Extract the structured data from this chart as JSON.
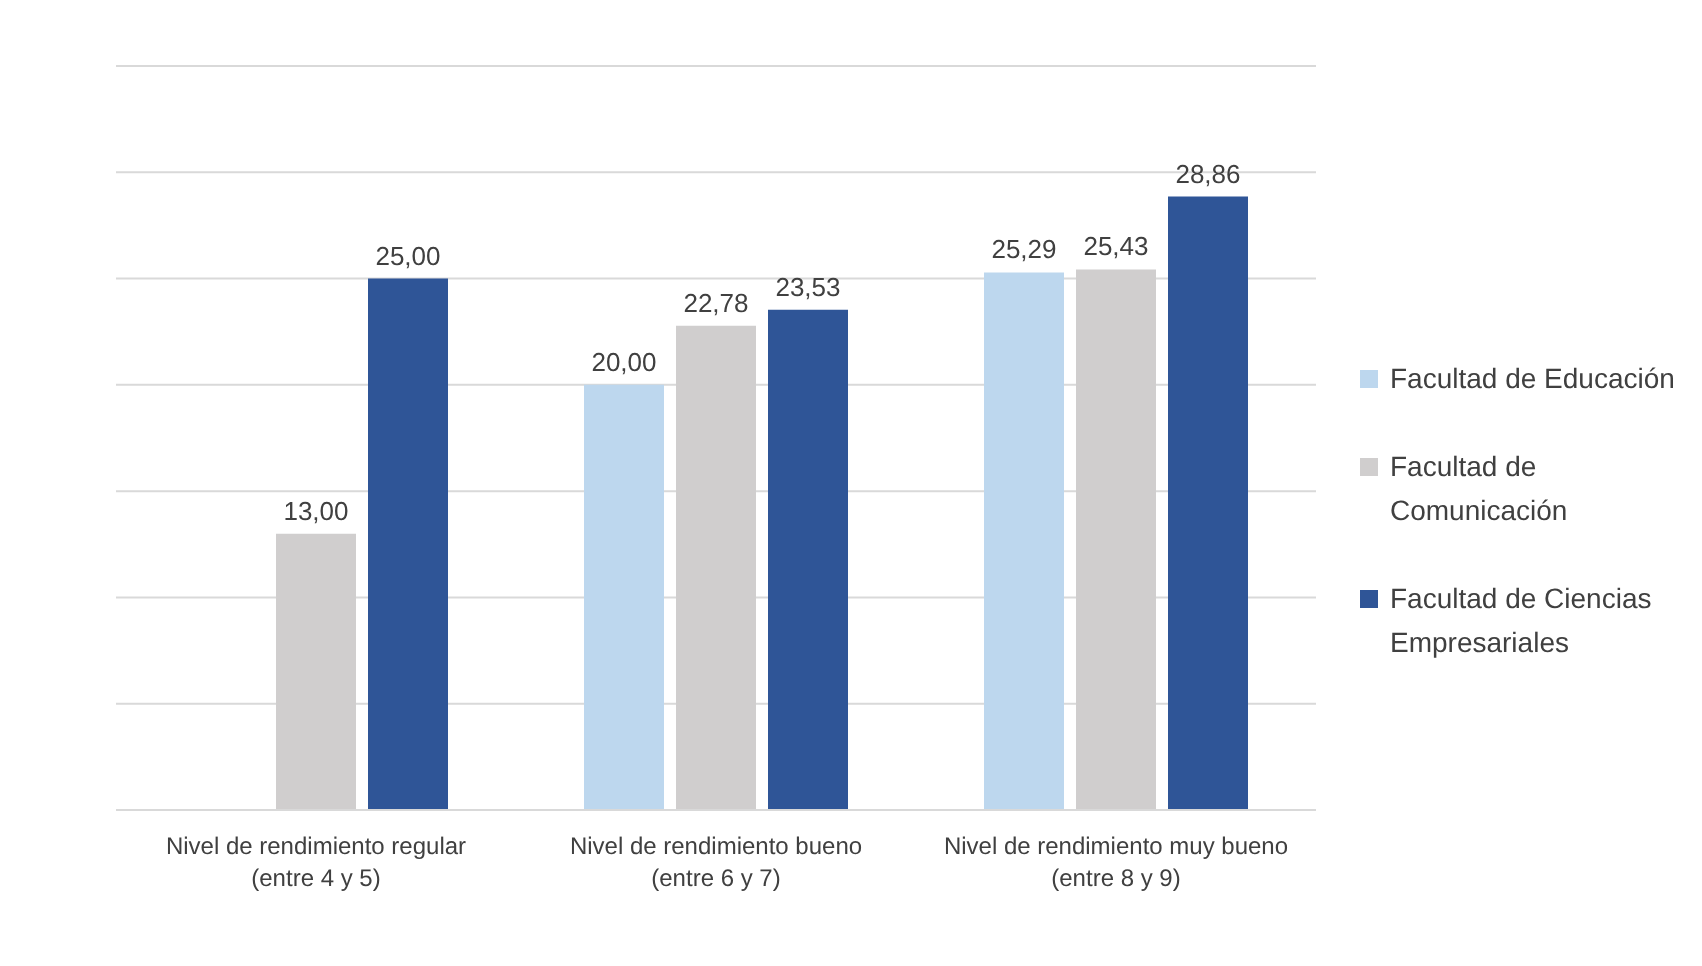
{
  "chart_data": {
    "type": "bar",
    "categories": [
      "Nivel de rendimiento regular (entre 4 y 5)",
      "Nivel de rendimiento bueno (entre 6 y 7)",
      "Nivel de rendimiento muy bueno (entre 8 y 9)"
    ],
    "series": [
      {
        "name": "Facultad de Educación",
        "color": "#bdd7ee",
        "values": [
          null,
          20.0,
          25.29
        ],
        "value_labels": [
          null,
          "20,00",
          "25,29"
        ]
      },
      {
        "name": "Facultad de Comunicación",
        "color": "#d0cece",
        "values": [
          13.0,
          22.78,
          25.43
        ],
        "value_labels": [
          "13,00",
          "22,78",
          "25,43"
        ]
      },
      {
        "name": "Facultad de Ciencias Empresariales",
        "color": "#2f5597",
        "values": [
          25.0,
          23.53,
          28.86
        ],
        "value_labels": [
          "25,00",
          "23,53",
          "28,86"
        ]
      }
    ],
    "ylim": [
      0,
      35
    ],
    "tick_labels": "x",
    "grid": "y",
    "legend": "right"
  }
}
